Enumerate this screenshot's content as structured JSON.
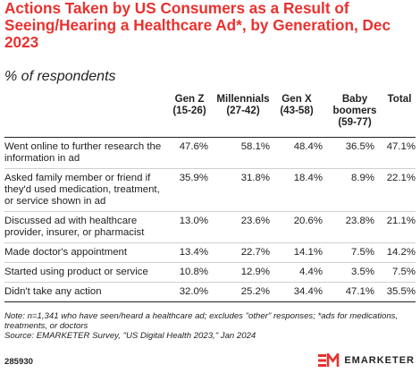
{
  "title": "Actions Taken by US Consumers as a Result of Seeing/Hearing a Healthcare Ad*, by Generation, Dec 2023",
  "subtitle": "% of respondents",
  "chart_data": {
    "type": "table",
    "columns": [
      {
        "lines": [
          "Gen Z",
          "(15-26)"
        ]
      },
      {
        "lines": [
          "Millennials",
          "(27-42)"
        ]
      },
      {
        "lines": [
          "Gen X",
          "(43-58)"
        ]
      },
      {
        "lines": [
          "Baby",
          "boomers",
          "(59-77)"
        ]
      },
      {
        "lines": [
          "Total"
        ]
      }
    ],
    "rows": [
      {
        "label": [
          "Went online to further research the",
          "information in ad"
        ],
        "values": [
          "47.6%",
          "58.1%",
          "48.4%",
          "36.5%",
          "47.1%"
        ]
      },
      {
        "label": [
          "Asked family member or friend if",
          "they'd used medication, treatment,",
          "or service shown in ad"
        ],
        "values": [
          "35.9%",
          "31.8%",
          "18.4%",
          "8.9%",
          "22.1%"
        ]
      },
      {
        "label": [
          "Discussed ad with healthcare",
          "provider, insurer, or pharmacist"
        ],
        "values": [
          "13.0%",
          "23.6%",
          "20.6%",
          "23.8%",
          "21.1%"
        ]
      },
      {
        "label": [
          "Made doctor's appointment"
        ],
        "values": [
          "13.4%",
          "22.7%",
          "14.1%",
          "7.5%",
          "14.2%"
        ]
      },
      {
        "label": [
          "Started using product or service"
        ],
        "values": [
          "10.8%",
          "12.9%",
          "4.4%",
          "3.5%",
          "7.5%"
        ]
      },
      {
        "label": [
          "Didn't take any action"
        ],
        "values": [
          "32.0%",
          "25.2%",
          "34.4%",
          "47.1%",
          "35.5%"
        ]
      }
    ]
  },
  "note": "Note: n=1,341 who have seen/heard a healthcare ad; excludes \"other\" responses; *ads for medications, treatments, or doctors",
  "source": "Source: EMARKETER Survey, \"US Digital Health 2023,\" Jan 2024",
  "chart_id": "285930",
  "brand": {
    "name": "EMARKETER",
    "accent": "#e8322f"
  }
}
